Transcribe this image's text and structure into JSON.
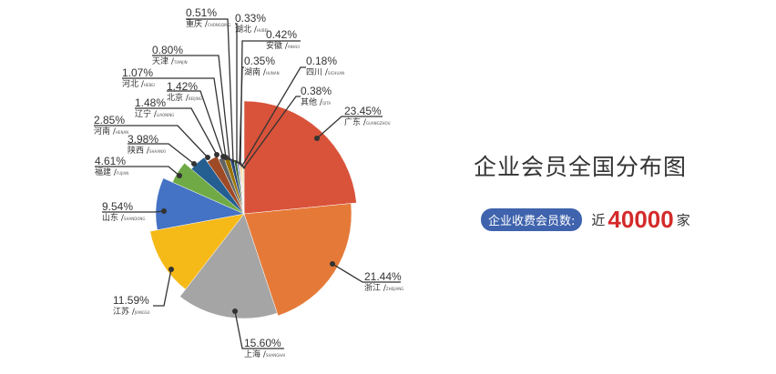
{
  "chart_data": {
    "type": "pie",
    "title": "企业会员全国分布图",
    "slices": [
      {
        "name": "广东",
        "pinyin": "GUANGZHOU",
        "value": 23.45,
        "label": "23.45%",
        "color": "#d9523a"
      },
      {
        "name": "浙江",
        "pinyin": "ZHEJIANG",
        "value": 21.44,
        "label": "21.44%",
        "color": "#e57a38"
      },
      {
        "name": "上海",
        "pinyin": "SHANGHAI",
        "value": 15.6,
        "label": "15.60%",
        "color": "#a5a5a5"
      },
      {
        "name": "江苏",
        "pinyin": "JIANGSU",
        "value": 11.59,
        "label": "11.59%",
        "color": "#f5b918"
      },
      {
        "name": "山东",
        "pinyin": "SHANDONG",
        "value": 9.54,
        "label": "9.54%",
        "color": "#4472c4"
      },
      {
        "name": "福建",
        "pinyin": "FUJIAN",
        "value": 4.61,
        "label": "4.61%",
        "color": "#6faa46"
      },
      {
        "name": "陕西",
        "pinyin": "SHAANXI",
        "value": 3.98,
        "label": "3.98%",
        "color": "#255e91"
      },
      {
        "name": "河南",
        "pinyin": "HENAN",
        "value": 2.85,
        "label": "2.85%",
        "color": "#9e4a26"
      },
      {
        "name": "辽宁",
        "pinyin": "LIAONING",
        "value": 1.48,
        "label": "1.48%",
        "color": "#636363"
      },
      {
        "name": "北京",
        "pinyin": "BEIJING",
        "value": 1.42,
        "label": "1.42%",
        "color": "#997300"
      },
      {
        "name": "河北",
        "pinyin": "HEBEI",
        "value": 1.07,
        "label": "1.07%",
        "color": "#264478"
      },
      {
        "name": "天津",
        "pinyin": "TIANJIN",
        "value": 0.8,
        "label": "0.80%",
        "color": "#43682b"
      },
      {
        "name": "重庆",
        "pinyin": "CHONGQING",
        "value": 0.51,
        "label": "0.51%",
        "color": "#698ed0"
      },
      {
        "name": "湖北",
        "pinyin": "HUBEI",
        "value": 0.33,
        "label": "0.33%",
        "color": "#f1975a"
      },
      {
        "name": "湖南",
        "pinyin": "HUNAN",
        "value": 0.35,
        "label": "0.35%",
        "color": "#b7b7b7"
      },
      {
        "name": "安徽",
        "pinyin": "ANHUI",
        "value": 0.42,
        "label": "0.42%",
        "color": "#ffcd33"
      },
      {
        "name": "四川",
        "pinyin": "SICHUAN",
        "value": 0.18,
        "label": "0.18%",
        "color": "#8cc168"
      },
      {
        "name": "其他",
        "pinyin": "QITA",
        "value": 0.38,
        "label": "0.38%",
        "color": "#d0c4a0"
      }
    ]
  },
  "summary": {
    "badge": "企业收费会员数:",
    "prefix": "近",
    "count": "40000",
    "unit": "家"
  }
}
